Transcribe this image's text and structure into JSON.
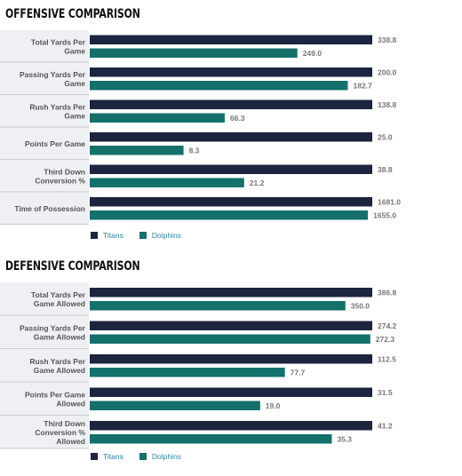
{
  "colors": {
    "titans": "#1b2540",
    "dolphins": "#13706a",
    "label_bg": "#eef0f3",
    "divider": "#c9ccd2"
  },
  "offensive": {
    "title": "OFFENSIVE COMPARISON",
    "legend": [
      "Titans",
      "Dolphins"
    ]
  },
  "defensive": {
    "title": "DEFENSIVE COMPARISON",
    "legend": [
      "Titans",
      "Dolphins"
    ]
  },
  "chart_data": [
    {
      "type": "bar",
      "orientation": "horizontal",
      "title": "OFFENSIVE COMPARISON",
      "categories": [
        "Total Yards Per Game",
        "Passing Yards Per Game",
        "Rush Yards Per Game",
        "Points Per Game",
        "Third Down Conversion %",
        "Time of Possession"
      ],
      "category_lines": [
        [
          "Total Yards Per",
          "Game"
        ],
        [
          "Passing Yards Per",
          "Game"
        ],
        [
          "Rush Yards Per",
          "Game"
        ],
        [
          "Points Per Game"
        ],
        [
          "Third Down",
          "Conversion %"
        ],
        [
          "Time of Possession"
        ]
      ],
      "series": [
        {
          "name": "Titans",
          "values": [
            338.8,
            200.0,
            138.8,
            25.0,
            38.8,
            1681.0
          ]
        },
        {
          "name": "Dolphins",
          "values": [
            249.0,
            182.7,
            66.3,
            8.3,
            21.2,
            1655.0
          ]
        }
      ],
      "scaling": "per-category",
      "legend": "bottom-left",
      "grid": false
    },
    {
      "type": "bar",
      "orientation": "horizontal",
      "title": "DEFENSIVE COMPARISON",
      "categories": [
        "Total Yards Per Game Allowed",
        "Passing Yards Per Game Allowed",
        "Rush Yards Per Game Allowed",
        "Points Per Game Allowed",
        "Third Down Conversion % Allowed"
      ],
      "category_lines": [
        [
          "Total Yards Per",
          "Game Allowed"
        ],
        [
          "Passing Yards Per",
          "Game Allowed"
        ],
        [
          "Rush Yards Per",
          "Game Allowed"
        ],
        [
          "Points Per Game",
          "Allowed"
        ],
        [
          "Third Down",
          "Conversion %",
          "Allowed"
        ]
      ],
      "series": [
        {
          "name": "Titans",
          "values": [
            386.8,
            274.2,
            112.5,
            31.5,
            41.2
          ]
        },
        {
          "name": "Dolphins",
          "values": [
            350.0,
            272.3,
            77.7,
            19.0,
            35.3
          ]
        }
      ],
      "scaling": "per-category",
      "legend": "bottom-left",
      "grid": false
    }
  ]
}
